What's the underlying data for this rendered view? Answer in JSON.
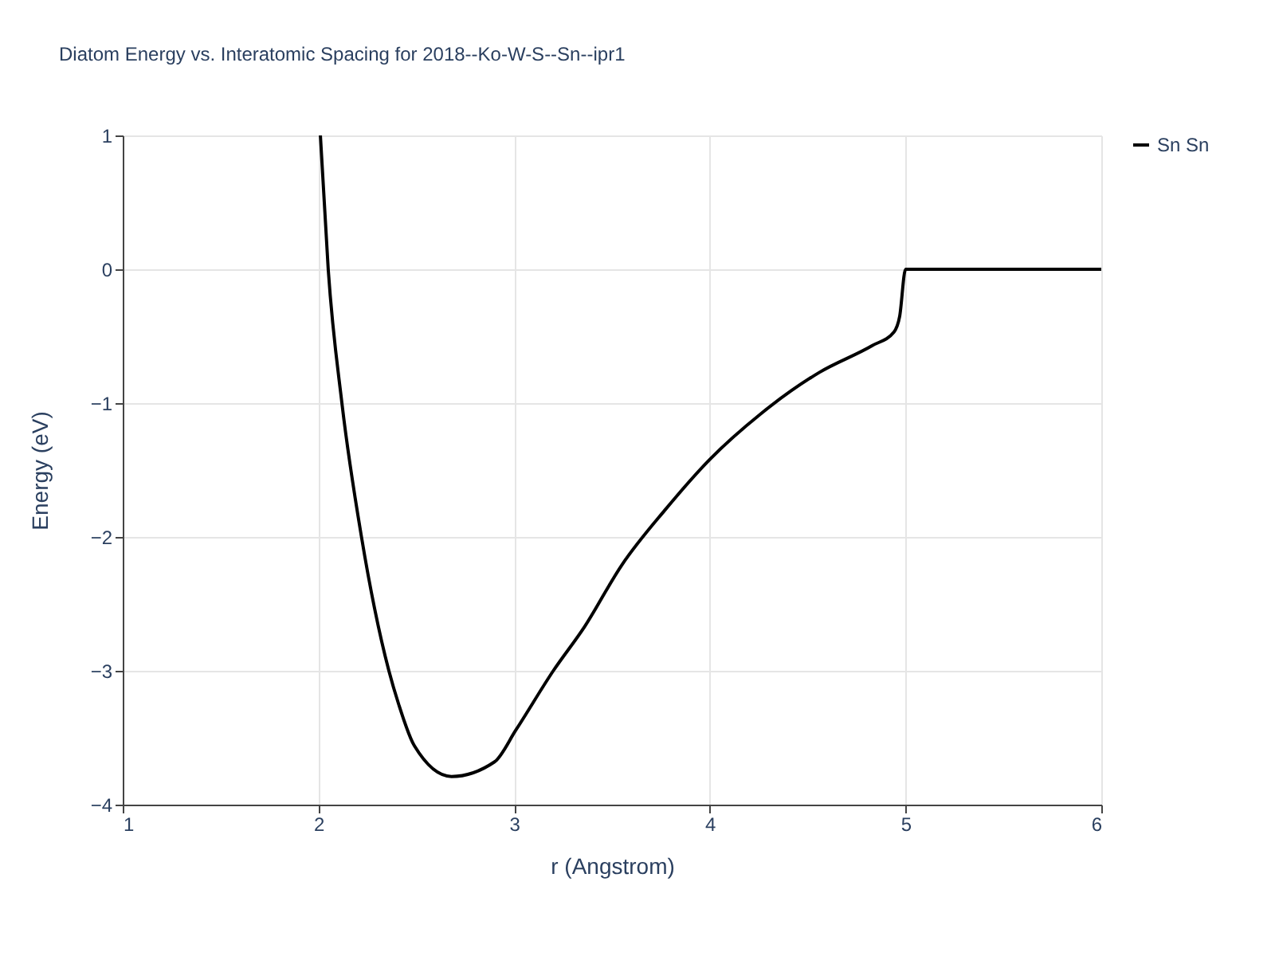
{
  "chart_data": {
    "type": "line",
    "title": "Diatom Energy vs. Interatomic Spacing for 2018--Ko-W-S--Sn--ipr1",
    "xlabel": "r (Angstrom)",
    "ylabel": "Energy (eV)",
    "xlim": [
      1,
      6
    ],
    "ylim": [
      -4,
      1
    ],
    "xticks": [
      1,
      2,
      3,
      4,
      5,
      6
    ],
    "yticks": [
      -4,
      -3,
      -2,
      -1,
      0,
      1
    ],
    "grid": true,
    "legend": "top right",
    "series": [
      {
        "name": "Sn Sn",
        "color": "#000000",
        "x": [
          2.01,
          2.05,
          2.12,
          2.22,
          2.36,
          2.41,
          2.49,
          2.68,
          2.9,
          3.01,
          3.2,
          3.36,
          3.55,
          3.77,
          4.0,
          4.26,
          4.56,
          4.83,
          4.94,
          4.97,
          5.0,
          6.0
        ],
        "values": [
          1,
          0,
          -1,
          -2,
          -3,
          -3.25,
          -3.56,
          -3.79,
          -3.68,
          -3.44,
          -3.0,
          -2.67,
          -2.21,
          -1.8,
          -1.42,
          -1.08,
          -0.77,
          -0.57,
          -0.47,
          -0.35,
          0,
          0
        ]
      }
    ]
  }
}
